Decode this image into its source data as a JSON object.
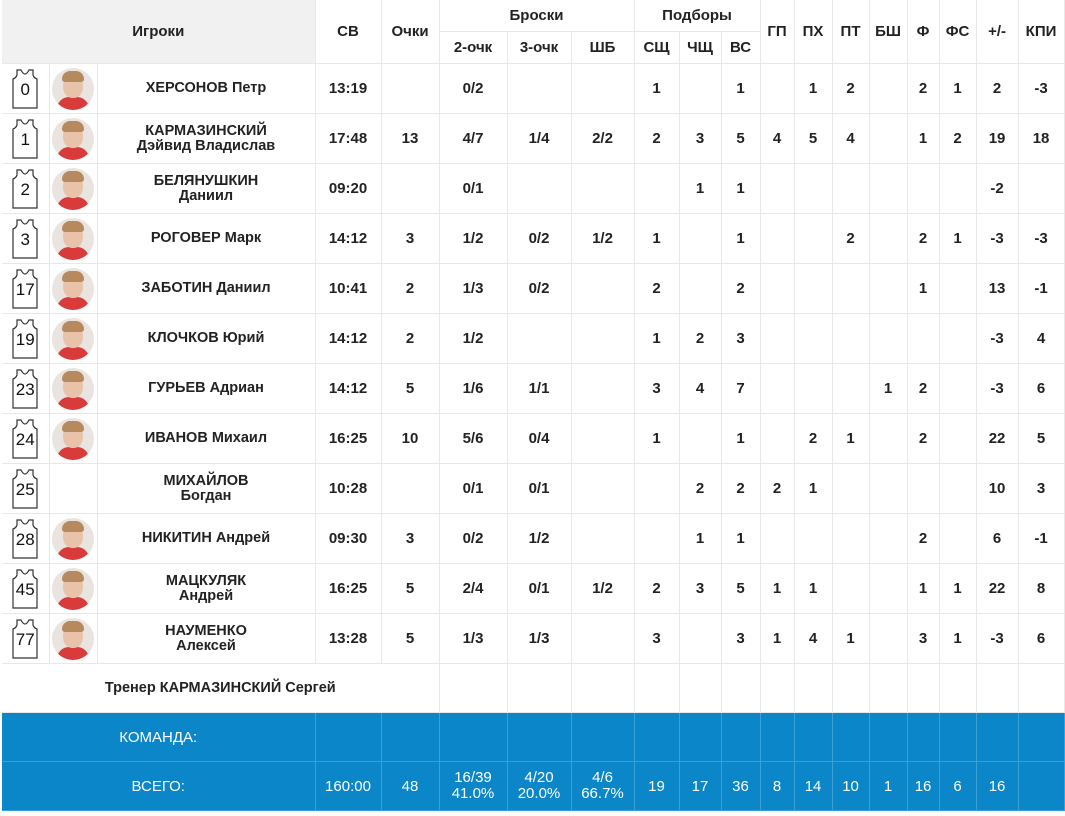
{
  "headers": {
    "players": "Игроки",
    "time": "СВ",
    "points": "Очки",
    "shots": "Броски",
    "two": "2-очк",
    "three": "3-очк",
    "ft": "ШБ",
    "rebounds": "Подборы",
    "def": "СЩ",
    "off": "ЧЩ",
    "total": "ВС",
    "ast": "ГП",
    "stl": "ПХ",
    "to": "ПТ",
    "blk": "БШ",
    "pf": "Ф",
    "fd": "ФС",
    "pm": "+/-",
    "eff": "КПИ"
  },
  "players": [
    {
      "num": "0",
      "last": "ХЕРСОНОВ Петр",
      "first": "",
      "time": "13:19",
      "pts": "",
      "two": "0/2",
      "three": "",
      "ft": "",
      "def": "1",
      "off": "",
      "reb": "1",
      "ast": "",
      "stl": "1",
      "to": "2",
      "blk": "",
      "pf": "2",
      "fd": "1",
      "pm": "2",
      "eff": "-3",
      "photo": "avatar-photo"
    },
    {
      "num": "1",
      "last": "КАРМАЗИНСКИЙ",
      "first": "Дэйвид Владислав",
      "time": "17:48",
      "pts": "13",
      "two": "4/7",
      "three": "1/4",
      "ft": "2/2",
      "def": "2",
      "off": "3",
      "reb": "5",
      "ast": "4",
      "stl": "5",
      "to": "4",
      "blk": "",
      "pf": "1",
      "fd": "2",
      "pm": "19",
      "eff": "18",
      "photo": "avatar-photo"
    },
    {
      "num": "2",
      "last": "БЕЛЯНУШКИН",
      "first": "Даниил",
      "time": "09:20",
      "pts": "",
      "two": "0/1",
      "three": "",
      "ft": "",
      "def": "",
      "off": "1",
      "reb": "1",
      "ast": "",
      "stl": "",
      "to": "",
      "blk": "",
      "pf": "",
      "fd": "",
      "pm": "-2",
      "eff": "",
      "photo": "avatar-photo"
    },
    {
      "num": "3",
      "last": "РОГОВЕР Марк",
      "first": "",
      "time": "14:12",
      "pts": "3",
      "two": "1/2",
      "three": "0/2",
      "ft": "1/2",
      "def": "1",
      "off": "",
      "reb": "1",
      "ast": "",
      "stl": "",
      "to": "2",
      "blk": "",
      "pf": "2",
      "fd": "1",
      "pm": "-3",
      "eff": "-3",
      "photo": "avatar-photo"
    },
    {
      "num": "17",
      "last": "ЗАБОТИН Даниил",
      "first": "",
      "time": "10:41",
      "pts": "2",
      "two": "1/3",
      "three": "0/2",
      "ft": "",
      "def": "2",
      "off": "",
      "reb": "2",
      "ast": "",
      "stl": "",
      "to": "",
      "blk": "",
      "pf": "1",
      "fd": "",
      "pm": "13",
      "eff": "-1",
      "photo": "avatar-photo"
    },
    {
      "num": "19",
      "last": "КЛОЧКОВ Юрий",
      "first": "",
      "time": "14:12",
      "pts": "2",
      "two": "1/2",
      "three": "",
      "ft": "",
      "def": "1",
      "off": "2",
      "reb": "3",
      "ast": "",
      "stl": "",
      "to": "",
      "blk": "",
      "pf": "",
      "fd": "",
      "pm": "-3",
      "eff": "4",
      "photo": "avatar-photo"
    },
    {
      "num": "23",
      "last": "ГУРЬЕВ Адриан",
      "first": "",
      "time": "14:12",
      "pts": "5",
      "two": "1/6",
      "three": "1/1",
      "ft": "",
      "def": "3",
      "off": "4",
      "reb": "7",
      "ast": "",
      "stl": "",
      "to": "",
      "blk": "1",
      "pf": "2",
      "fd": "",
      "pm": "-3",
      "eff": "6",
      "photo": "avatar-photo"
    },
    {
      "num": "24",
      "last": "ИВАНОВ Михаил",
      "first": "",
      "time": "16:25",
      "pts": "10",
      "two": "5/6",
      "three": "0/4",
      "ft": "",
      "def": "1",
      "off": "",
      "reb": "1",
      "ast": "",
      "stl": "2",
      "to": "1",
      "blk": "",
      "pf": "2",
      "fd": "",
      "pm": "22",
      "eff": "5",
      "photo": "avatar-photo"
    },
    {
      "num": "25",
      "last": "МИХАЙЛОВ",
      "first": "Богдан",
      "time": "10:28",
      "pts": "",
      "two": "0/1",
      "three": "0/1",
      "ft": "",
      "def": "",
      "off": "2",
      "reb": "2",
      "ast": "2",
      "stl": "1",
      "to": "",
      "blk": "",
      "pf": "",
      "fd": "",
      "pm": "10",
      "eff": "3",
      "photo": ""
    },
    {
      "num": "28",
      "last": "НИКИТИН Андрей",
      "first": "",
      "time": "09:30",
      "pts": "3",
      "two": "0/2",
      "three": "1/2",
      "ft": "",
      "def": "",
      "off": "1",
      "reb": "1",
      "ast": "",
      "stl": "",
      "to": "",
      "blk": "",
      "pf": "2",
      "fd": "",
      "pm": "6",
      "eff": "-1",
      "photo": "avatar-photo"
    },
    {
      "num": "45",
      "last": "МАЦКУЛЯК",
      "first": "Андрей",
      "time": "16:25",
      "pts": "5",
      "two": "2/4",
      "three": "0/1",
      "ft": "1/2",
      "def": "2",
      "off": "3",
      "reb": "5",
      "ast": "1",
      "stl": "1",
      "to": "",
      "blk": "",
      "pf": "1",
      "fd": "1",
      "pm": "22",
      "eff": "8",
      "photo": "avatar-photo"
    },
    {
      "num": "77",
      "last": "НАУМЕНКО",
      "first": "Алексей",
      "time": "13:28",
      "pts": "5",
      "two": "1/3",
      "three": "1/3",
      "ft": "",
      "def": "3",
      "off": "",
      "reb": "3",
      "ast": "1",
      "stl": "4",
      "to": "1",
      "blk": "",
      "pf": "3",
      "fd": "1",
      "pm": "-3",
      "eff": "6",
      "photo": "avatar-photo"
    }
  ],
  "coach": "Тренер КАРМАЗИНСКИЙ Сергей",
  "team_label": "КОМАНДА:",
  "totals": {
    "label": "ВСЕГО:",
    "time": "160:00",
    "pts": "48",
    "two_made": "16/39",
    "two_pct": "41.0%",
    "three_made": "4/20",
    "three_pct": "20.0%",
    "ft_made": "4/6",
    "ft_pct": "66.7%",
    "def": "19",
    "off": "17",
    "reb": "36",
    "ast": "8",
    "stl": "14",
    "to": "10",
    "blk": "1",
    "pf": "16",
    "fd": "6",
    "pm": "16"
  },
  "colors": {
    "team_row": "#0b86c8",
    "header_bg": "#f1f1f1",
    "avatar_shirt": "#d93a3a"
  }
}
